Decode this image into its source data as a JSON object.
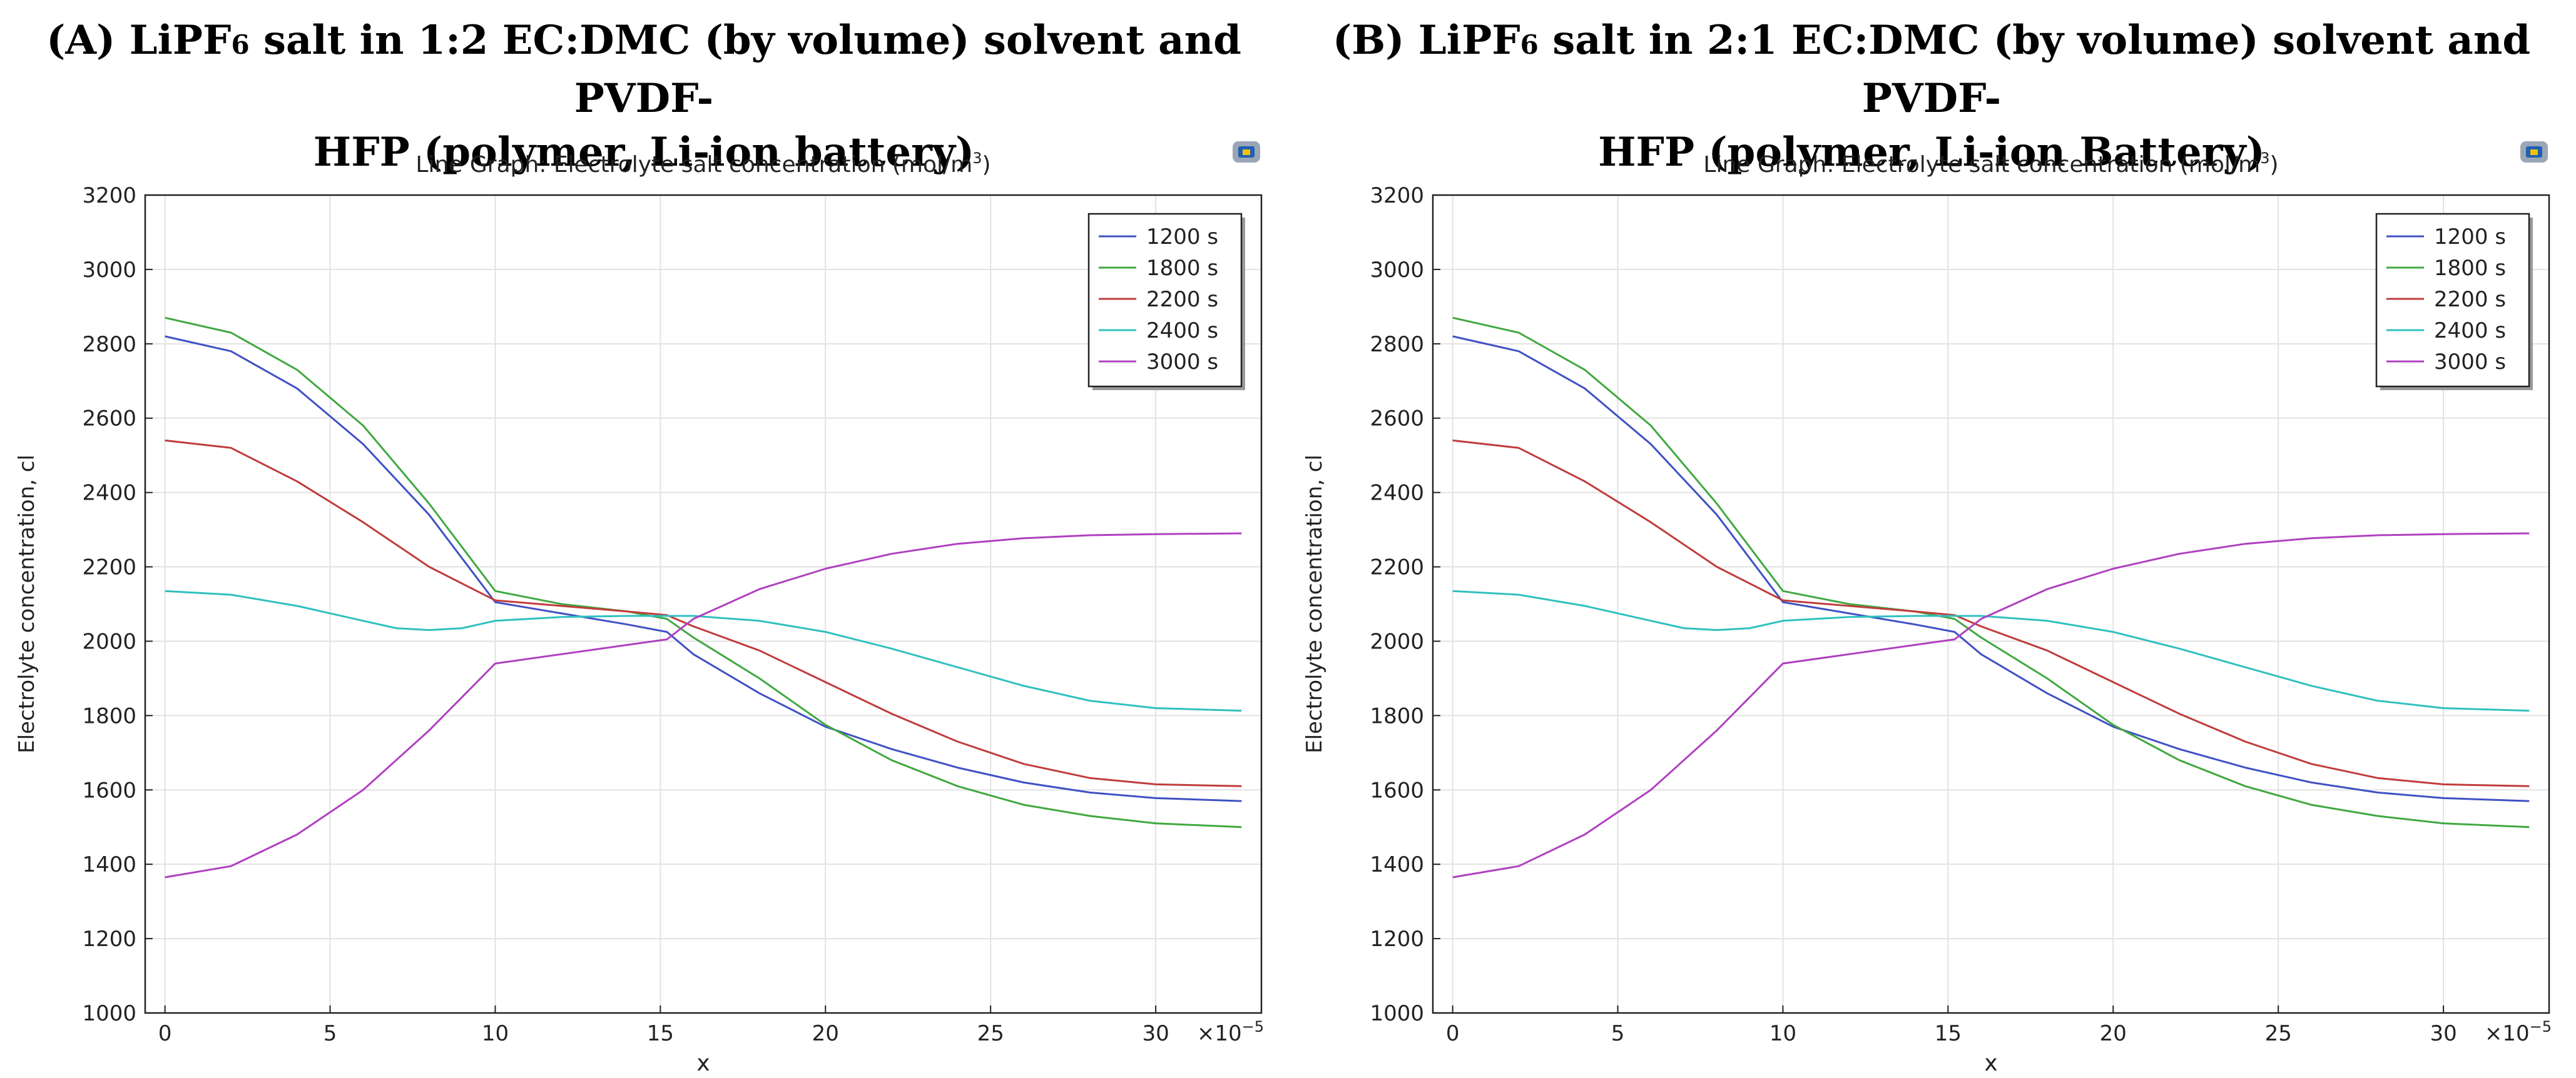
{
  "chart_data": [
    {
      "type": "line",
      "caption": {
        "prefix": "(A) LiPF",
        "subscript": "6",
        "line1_rest": " salt in 1:2 EC:DMC (by volume) solvent and PVDF-",
        "line2": "HFP (polymer, Li-ion battery)"
      },
      "title_prefix": "Line Graph: Electrolyte salt concentration (mol/m",
      "title_sup": "3",
      "title_suffix": ")",
      "xlabel": "x",
      "ylabel": "Electrolyte concentration, cl",
      "x_multiplier": "×10",
      "x_multiplier_exp": "−5",
      "xlim": [
        -0.6,
        33.2
      ],
      "ylim": [
        1000,
        3200
      ],
      "xticks": [
        0,
        5,
        10,
        15,
        20,
        25,
        30
      ],
      "yticks": [
        1000,
        1200,
        1400,
        1600,
        1800,
        2000,
        2200,
        2400,
        2600,
        2800,
        3000,
        3200
      ],
      "grid": true,
      "legend_position": "top-right",
      "series": [
        {
          "name": "1200 s",
          "color": "#3f51c4",
          "x": [
            0,
            2,
            4,
            6,
            8,
            10,
            12,
            14,
            15.2,
            16,
            18,
            20,
            22,
            24,
            26,
            28,
            30,
            32.6
          ],
          "values": [
            2820,
            2780,
            2680,
            2530,
            2340,
            2105,
            2075,
            2045,
            2025,
            1965,
            1860,
            1770,
            1710,
            1660,
            1620,
            1593,
            1578,
            1570
          ]
        },
        {
          "name": "1800 s",
          "color": "#40a840",
          "x": [
            0,
            2,
            4,
            6,
            8,
            10,
            12,
            14,
            15.2,
            16,
            18,
            20,
            22,
            24,
            26,
            28,
            30,
            32.6
          ],
          "values": [
            2870,
            2830,
            2730,
            2580,
            2370,
            2135,
            2100,
            2080,
            2060,
            2010,
            1900,
            1775,
            1680,
            1610,
            1560,
            1530,
            1510,
            1500
          ]
        },
        {
          "name": "2200 s",
          "color": "#c03c3c",
          "x": [
            0,
            2,
            4,
            6,
            8,
            10,
            12,
            14,
            15.2,
            16,
            18,
            20,
            22,
            24,
            26,
            28,
            30,
            32.6
          ],
          "values": [
            2540,
            2520,
            2430,
            2320,
            2200,
            2110,
            2095,
            2080,
            2070,
            2040,
            1975,
            1890,
            1805,
            1730,
            1670,
            1632,
            1615,
            1610
          ]
        },
        {
          "name": "2400 s",
          "color": "#30c0c0",
          "x": [
            0,
            2,
            4,
            6,
            7,
            8,
            9,
            10,
            12,
            14,
            16,
            18,
            20,
            22,
            24,
            26,
            28,
            30,
            32.6
          ],
          "values": [
            2135,
            2125,
            2095,
            2055,
            2035,
            2030,
            2035,
            2055,
            2065,
            2068,
            2068,
            2055,
            2025,
            1980,
            1930,
            1880,
            1840,
            1820,
            1813
          ]
        },
        {
          "name": "3000 s",
          "color": "#b040c0",
          "x": [
            0,
            2,
            4,
            6,
            8,
            10,
            12,
            14,
            15.2,
            16,
            18,
            20,
            22,
            24,
            26,
            28,
            30,
            32.6
          ],
          "values": [
            1365,
            1395,
            1480,
            1600,
            1760,
            1940,
            1965,
            1990,
            2005,
            2060,
            2140,
            2195,
            2235,
            2262,
            2277,
            2285,
            2288,
            2290
          ]
        }
      ]
    },
    {
      "type": "line",
      "caption": {
        "prefix": "(B) LiPF",
        "subscript": "6",
        "line1_rest": " salt in 2:1 EC:DMC (by volume) solvent and PVDF-",
        "line2": "HFP (polymer, Li-ion Battery)"
      },
      "title_prefix": "Line Graph: Electrolyte salt concentration (mol/m",
      "title_sup": "3",
      "title_suffix": ")",
      "xlabel": "x",
      "ylabel": "Electrolyte concentration, cl",
      "x_multiplier": "×10",
      "x_multiplier_exp": "−5",
      "xlim": [
        -0.6,
        33.2
      ],
      "ylim": [
        1000,
        3200
      ],
      "xticks": [
        0,
        5,
        10,
        15,
        20,
        25,
        30
      ],
      "yticks": [
        1000,
        1200,
        1400,
        1600,
        1800,
        2000,
        2200,
        2400,
        2600,
        2800,
        3000,
        3200
      ],
      "grid": true,
      "legend_position": "top-right",
      "series": [
        {
          "name": "1200 s",
          "color": "#3f51c4",
          "x": [
            0,
            2,
            4,
            6,
            8,
            10,
            12,
            14,
            15.2,
            16,
            18,
            20,
            22,
            24,
            26,
            28,
            30,
            32.6
          ],
          "values": [
            2820,
            2780,
            2680,
            2530,
            2340,
            2105,
            2075,
            2045,
            2025,
            1965,
            1860,
            1770,
            1710,
            1660,
            1620,
            1593,
            1578,
            1570
          ]
        },
        {
          "name": "1800 s",
          "color": "#40a840",
          "x": [
            0,
            2,
            4,
            6,
            8,
            10,
            12,
            14,
            15.2,
            16,
            18,
            20,
            22,
            24,
            26,
            28,
            30,
            32.6
          ],
          "values": [
            2870,
            2830,
            2730,
            2580,
            2370,
            2135,
            2100,
            2080,
            2060,
            2010,
            1900,
            1775,
            1680,
            1610,
            1560,
            1530,
            1510,
            1500
          ]
        },
        {
          "name": "2200 s",
          "color": "#c03c3c",
          "x": [
            0,
            2,
            4,
            6,
            8,
            10,
            12,
            14,
            15.2,
            16,
            18,
            20,
            22,
            24,
            26,
            28,
            30,
            32.6
          ],
          "values": [
            2540,
            2520,
            2430,
            2320,
            2200,
            2110,
            2095,
            2080,
            2070,
            2040,
            1975,
            1890,
            1805,
            1730,
            1670,
            1632,
            1615,
            1610
          ]
        },
        {
          "name": "2400 s",
          "color": "#30c0c0",
          "x": [
            0,
            2,
            4,
            6,
            7,
            8,
            9,
            10,
            12,
            14,
            16,
            18,
            20,
            22,
            24,
            26,
            28,
            30,
            32.6
          ],
          "values": [
            2135,
            2125,
            2095,
            2055,
            2035,
            2030,
            2035,
            2055,
            2065,
            2068,
            2068,
            2055,
            2025,
            1980,
            1930,
            1880,
            1840,
            1820,
            1813
          ]
        },
        {
          "name": "3000 s",
          "color": "#b040c0",
          "x": [
            0,
            2,
            4,
            6,
            8,
            10,
            12,
            14,
            15.2,
            16,
            18,
            20,
            22,
            24,
            26,
            28,
            30,
            32.6
          ],
          "values": [
            1365,
            1395,
            1480,
            1600,
            1760,
            1940,
            1965,
            1990,
            2005,
            2060,
            2140,
            2195,
            2235,
            2262,
            2277,
            2285,
            2288,
            2290
          ]
        }
      ]
    }
  ]
}
